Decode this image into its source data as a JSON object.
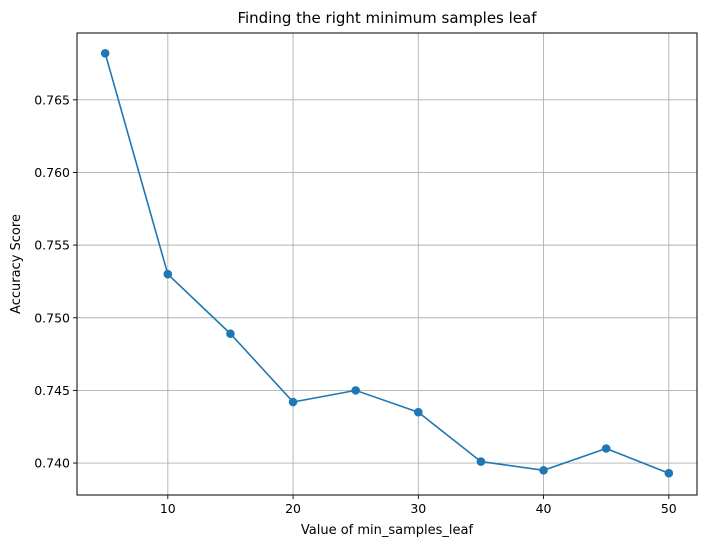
{
  "chart_data": {
    "type": "line",
    "title": "Finding the right minimum samples leaf",
    "xlabel": "Value of min_samples_leaf",
    "ylabel": "Accuracy Score",
    "x": [
      5,
      10,
      15,
      20,
      25,
      30,
      35,
      40,
      45,
      50
    ],
    "series": [
      {
        "values": [
          0.7682,
          0.753,
          0.7489,
          0.7442,
          0.745,
          0.7435,
          0.7401,
          0.7395,
          0.741,
          0.7393
        ],
        "color": "#1f77b4",
        "marker": "circle"
      }
    ],
    "xlim": [
      2.75,
      52.25
    ],
    "ylim": [
      0.7378,
      0.7696
    ],
    "xticks": [
      10,
      20,
      30,
      40,
      50
    ],
    "xtick_labels": [
      "10",
      "20",
      "30",
      "40",
      "50"
    ],
    "yticks": [
      0.74,
      0.745,
      0.75,
      0.755,
      0.76,
      0.765
    ],
    "ytick_labels": [
      "0.740",
      "0.745",
      "0.750",
      "0.755",
      "0.760",
      "0.765"
    ],
    "grid": true
  }
}
